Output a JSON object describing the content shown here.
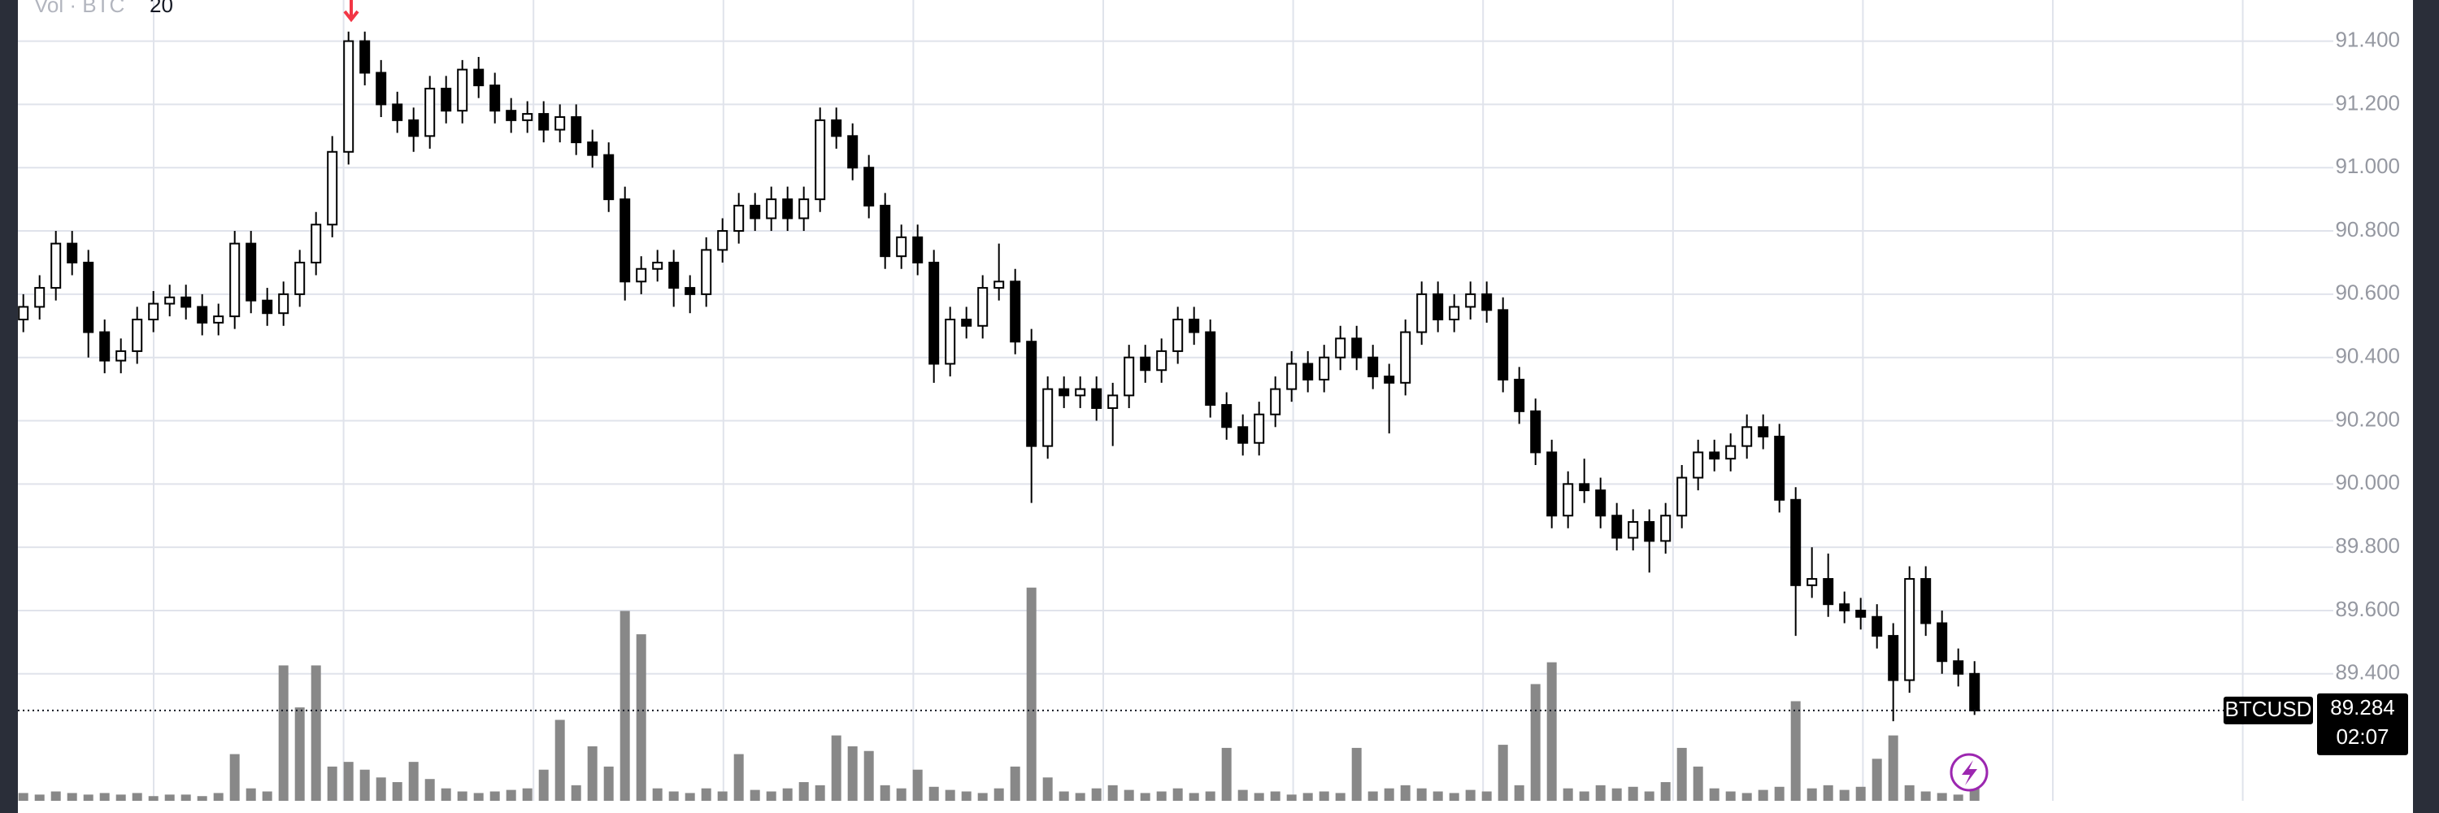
{
  "chart_data": {
    "type": "candlestick",
    "symbol": "BTCUSD",
    "volume_legend": "Vol · BTC",
    "volume_ma_length": 20,
    "open": [
      90520,
      90560,
      90620,
      90760,
      90700,
      90480,
      90390,
      90420,
      90520,
      90570,
      90590,
      90560,
      90510,
      90530,
      90760,
      90580,
      90540,
      90600,
      90700,
      90820,
      91050,
      91400,
      91300,
      91200,
      91150,
      91100,
      91250,
      91180,
      91310,
      91260,
      91180,
      91150,
      91170,
      91120,
      91160,
      91080,
      91040,
      90900,
      90640,
      90680,
      90700,
      90620,
      90600,
      90740,
      90800,
      90880,
      90840,
      90900,
      90840,
      90900,
      91150,
      91100,
      91000,
      90880,
      90720,
      90780,
      90700,
      90380,
      90520,
      90500,
      90620,
      90640,
      90450,
      90120,
      90300,
      90280,
      90300,
      90240,
      90280,
      90400,
      90360,
      90420,
      90520,
      90480,
      90250,
      90180,
      90130,
      90220,
      90300,
      90380,
      90330,
      90400,
      90460,
      90400,
      90340,
      90320,
      90480,
      90600,
      90520,
      90560,
      90600,
      90550,
      90330,
      90230,
      90100,
      89900,
      90000,
      89980,
      89900,
      89830,
      89880,
      89820,
      89900,
      90020,
      90100,
      90080,
      90120,
      90180,
      90150,
      89950,
      89680,
      89700,
      89620,
      89600,
      89580,
      89520,
      89380,
      89700,
      89560,
      89440,
      89400
    ],
    "high": [
      90600,
      90660,
      90800,
      90800,
      90740,
      90520,
      90460,
      90560,
      90610,
      90630,
      90630,
      90600,
      90570,
      90800,
      90800,
      90620,
      90640,
      90740,
      90860,
      91100,
      91430,
      91430,
      91340,
      91240,
      91190,
      91290,
      91290,
      91340,
      91350,
      91300,
      91220,
      91210,
      91210,
      91200,
      91200,
      91120,
      91080,
      90940,
      90720,
      90740,
      90740,
      90660,
      90780,
      90840,
      90920,
      90920,
      90940,
      90940,
      90940,
      91190,
      91190,
      91140,
      91040,
      90920,
      90820,
      90820,
      90740,
      90560,
      90560,
      90660,
      90760,
      90680,
      90490,
      90340,
      90340,
      90340,
      90340,
      90320,
      90440,
      90440,
      90460,
      90560,
      90560,
      90520,
      90290,
      90220,
      90260,
      90340,
      90420,
      90420,
      90440,
      90500,
      90500,
      90440,
      90380,
      90520,
      90640,
      90640,
      90600,
      90640,
      90640,
      90590,
      90370,
      90270,
      90140,
      90040,
      90080,
      90020,
      89940,
      89920,
      89920,
      89940,
      90060,
      90140,
      90140,
      90160,
      90220,
      90220,
      90190,
      89990,
      89800,
      89780,
      89660,
      89640,
      89620,
      89560,
      89740,
      89740,
      89600,
      89480,
      89440
    ],
    "low": [
      90480,
      90520,
      90580,
      90660,
      90400,
      90350,
      90350,
      90380,
      90480,
      90530,
      90520,
      90470,
      90470,
      90490,
      90540,
      90500,
      90500,
      90560,
      90660,
      90780,
      91010,
      91260,
      91160,
      91110,
      91050,
      91060,
      91140,
      91140,
      91220,
      91140,
      91110,
      91110,
      91080,
      91080,
      91040,
      91000,
      90860,
      90580,
      90600,
      90640,
      90560,
      90540,
      90560,
      90700,
      90760,
      90800,
      90800,
      90800,
      90800,
      90860,
      91060,
      90960,
      90840,
      90680,
      90680,
      90660,
      90320,
      90340,
      90460,
      90460,
      90580,
      90410,
      89940,
      90080,
      90240,
      90240,
      90200,
      90120,
      90240,
      90320,
      90320,
      90380,
      90440,
      90210,
      90140,
      90090,
      90090,
      90180,
      90260,
      90290,
      90290,
      90360,
      90360,
      90300,
      90160,
      90280,
      90440,
      90480,
      90480,
      90520,
      90510,
      90290,
      90190,
      90060,
      89860,
      89860,
      89940,
      89860,
      89790,
      89790,
      89720,
      89780,
      89860,
      89980,
      90040,
      90040,
      90080,
      90110,
      89910,
      89520,
      89640,
      89580,
      89560,
      89540,
      89480,
      89250,
      89340,
      89520,
      89400,
      89360,
      89270
    ],
    "close": [
      90560,
      90620,
      90760,
      90700,
      90480,
      90390,
      90420,
      90520,
      90570,
      90590,
      90560,
      90510,
      90530,
      90760,
      90580,
      90540,
      90600,
      90700,
      90820,
      91050,
      91400,
      91300,
      91200,
      91150,
      91100,
      91250,
      91180,
      91310,
      91260,
      91180,
      91150,
      91170,
      91120,
      91160,
      91080,
      91040,
      90900,
      90640,
      90680,
      90700,
      90620,
      90600,
      90740,
      90800,
      90880,
      90840,
      90900,
      90840,
      90900,
      91150,
      91100,
      91000,
      90880,
      90720,
      90780,
      90700,
      90380,
      90520,
      90500,
      90620,
      90640,
      90450,
      90120,
      90300,
      90280,
      90300,
      90240,
      90280,
      90400,
      90360,
      90420,
      90520,
      90480,
      90250,
      90180,
      90130,
      90220,
      90300,
      90380,
      90330,
      90400,
      90460,
      90400,
      90340,
      90320,
      90480,
      90600,
      90520,
      90560,
      90600,
      90550,
      90330,
      90230,
      90100,
      89900,
      90000,
      89980,
      89900,
      89830,
      89880,
      89820,
      89900,
      90020,
      90100,
      90080,
      90120,
      90180,
      90150,
      89950,
      89680,
      89700,
      89620,
      89600,
      89580,
      89520,
      89380,
      89700,
      89560,
      89440,
      89400,
      89284
    ],
    "volume": [
      5,
      4,
      6,
      5,
      4,
      5,
      4,
      5,
      3,
      4,
      4,
      3,
      5,
      30,
      8,
      6,
      87,
      60,
      87,
      22,
      25,
      20,
      15,
      12,
      25,
      14,
      8,
      6,
      5,
      6,
      7,
      8,
      20,
      52,
      10,
      35,
      22,
      122,
      107,
      8,
      6,
      5,
      8,
      6,
      30,
      7,
      6,
      8,
      12,
      10,
      42,
      35,
      32,
      10,
      8,
      20,
      9,
      7,
      6,
      5,
      8,
      22,
      137,
      15,
      6,
      5,
      8,
      10,
      7,
      5,
      6,
      8,
      5,
      6,
      34,
      7,
      5,
      6,
      4,
      5,
      6,
      5,
      34,
      6,
      8,
      10,
      8,
      6,
      5,
      7,
      6,
      36,
      10,
      75,
      89,
      8,
      6,
      10,
      8,
      9,
      6,
      12,
      34,
      22,
      8,
      6,
      5,
      7,
      9,
      64,
      8,
      10,
      7,
      9,
      27,
      42,
      10,
      6,
      5,
      4,
      18
    ],
    "ylim": [
      88960,
      91530
    ],
    "yticks": [
      {
        "value": 89400,
        "label": "89.400"
      },
      {
        "value": 89600,
        "label": "89.600"
      },
      {
        "value": 89800,
        "label": "89.800"
      },
      {
        "value": 90000,
        "label": "90.000"
      },
      {
        "value": 90200,
        "label": "90.200"
      },
      {
        "value": 90400,
        "label": "90.400"
      },
      {
        "value": 90600,
        "label": "90.600"
      },
      {
        "value": 90800,
        "label": "90.800"
      },
      {
        "value": 91000,
        "label": "91.000"
      },
      {
        "value": 91200,
        "label": "91.200"
      },
      {
        "value": 91400,
        "label": "91.400"
      }
    ],
    "vlim": [
      0,
      140
    ],
    "grid": true,
    "up_color": "#ffffff",
    "down_color": "#000000",
    "volume_color": "#888888",
    "last_price": {
      "value": 89284,
      "label": "89.284"
    },
    "countdown": "02:07"
  }
}
